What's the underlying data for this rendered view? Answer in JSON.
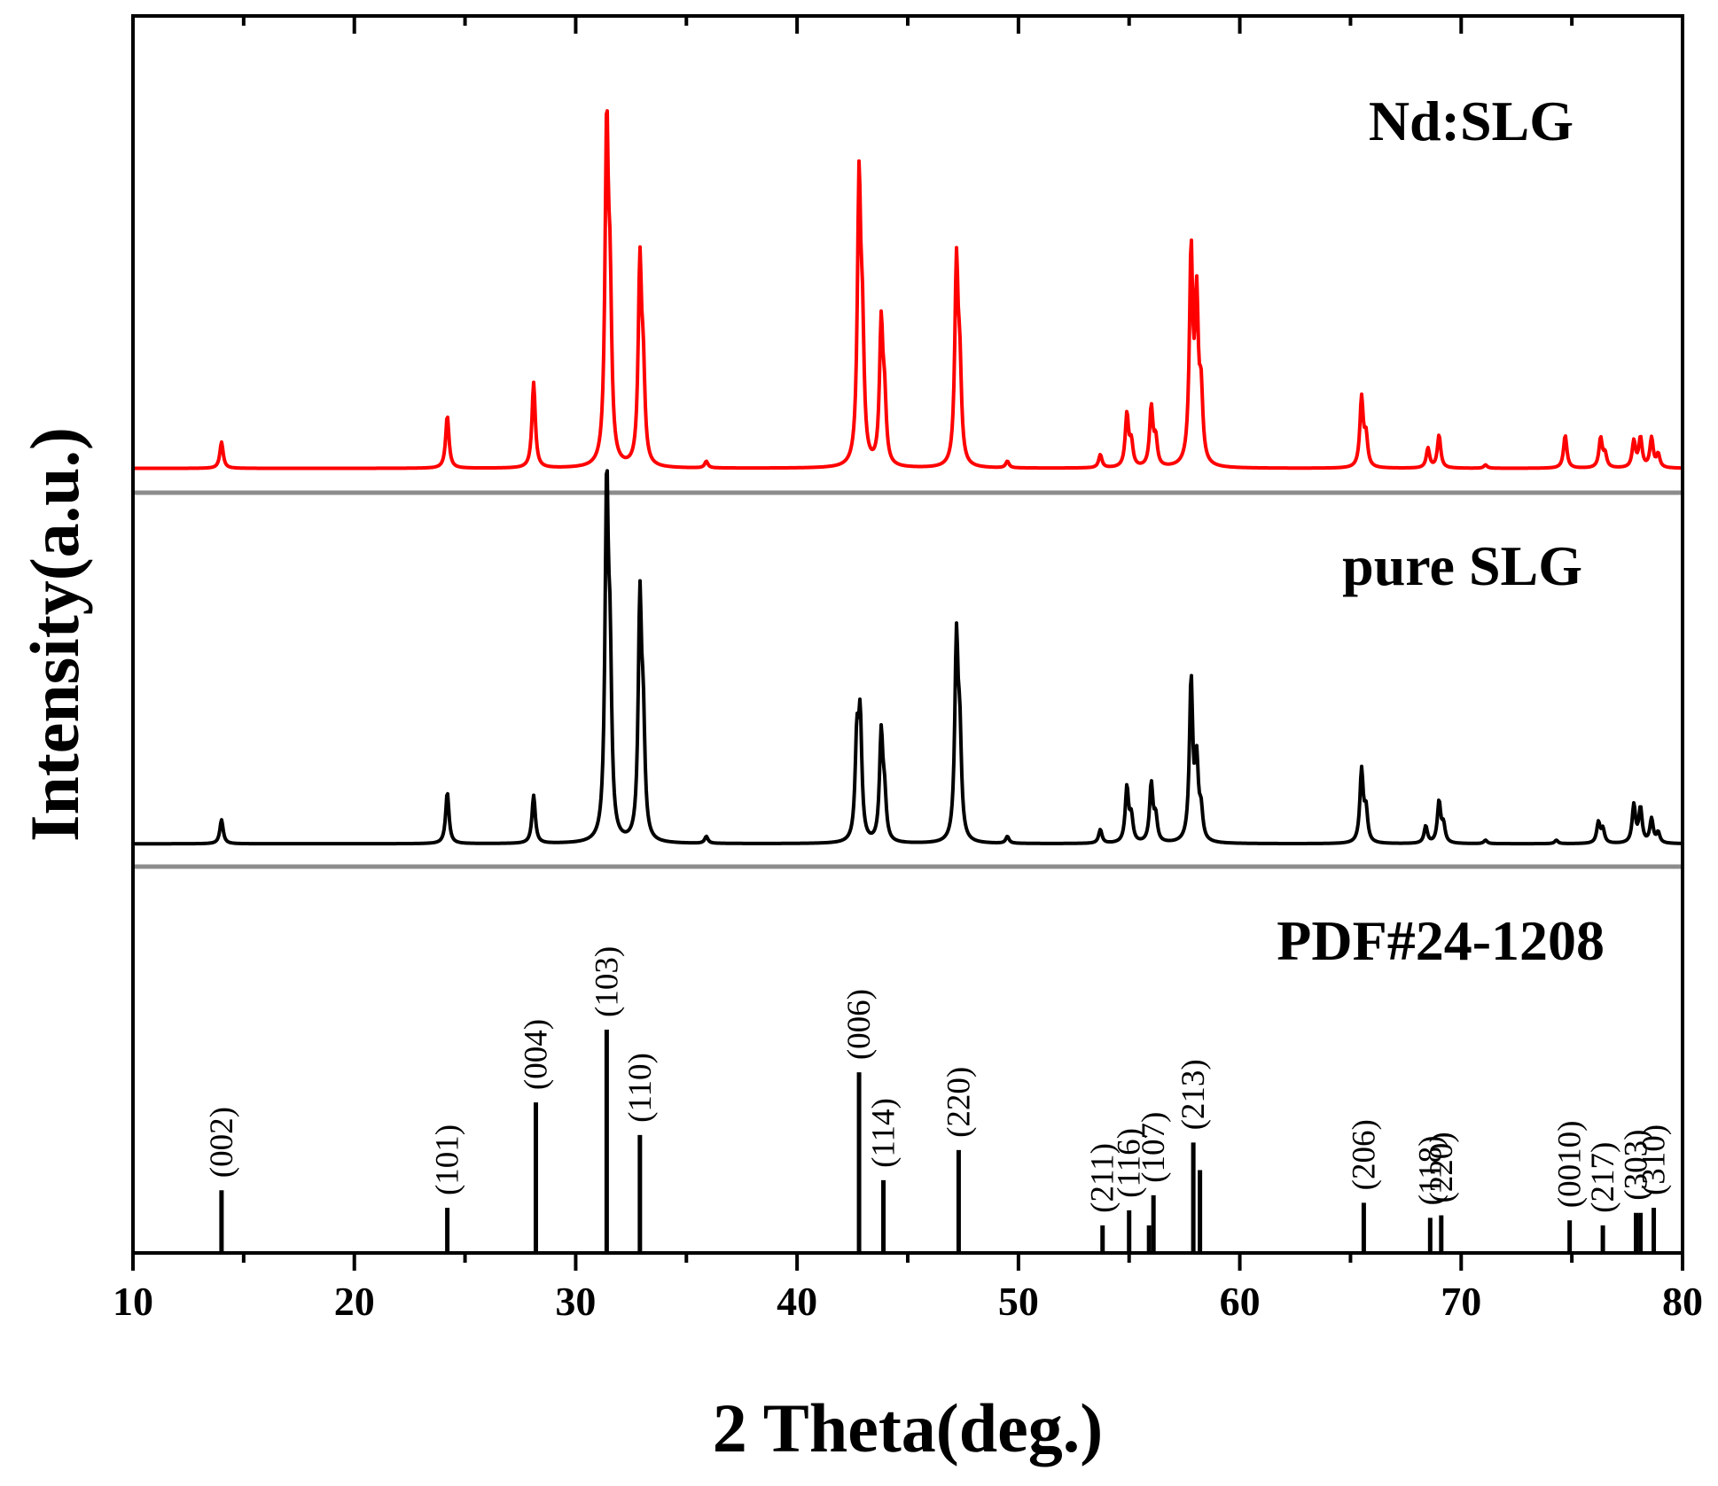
{
  "chart_data": {
    "type": "line",
    "xlabel": "2 Theta(deg.)",
    "ylabel": "Intensity(a.u.)",
    "xlim": [
      10,
      80
    ],
    "x_ticks": [
      10,
      20,
      30,
      40,
      50,
      60,
      70,
      80
    ],
    "x_tick_labels": [
      "10",
      "20",
      "30",
      "40",
      "50",
      "60",
      "70",
      "80"
    ],
    "grid": false,
    "series": [
      {
        "name": "Nd:SLG",
        "label": "Nd:SLG",
        "color": "#ff0000",
        "baseline": 0.02,
        "peaks": [
          {
            "x": 14.0,
            "h": 0.08
          },
          {
            "x": 24.2,
            "h": 0.16
          },
          {
            "x": 28.1,
            "h": 0.26
          },
          {
            "x": 31.4,
            "h": 1.0
          },
          {
            "x": 31.55,
            "h": 0.45
          },
          {
            "x": 32.9,
            "h": 0.6
          },
          {
            "x": 33.05,
            "h": 0.25
          },
          {
            "x": 35.9,
            "h": 0.02
          },
          {
            "x": 42.8,
            "h": 0.84
          },
          {
            "x": 42.95,
            "h": 0.35
          },
          {
            "x": 43.8,
            "h": 0.42
          },
          {
            "x": 43.95,
            "h": 0.18
          },
          {
            "x": 47.2,
            "h": 0.6
          },
          {
            "x": 47.35,
            "h": 0.26
          },
          {
            "x": 49.5,
            "h": 0.02
          },
          {
            "x": 53.7,
            "h": 0.04
          },
          {
            "x": 54.9,
            "h": 0.16
          },
          {
            "x": 55.1,
            "h": 0.07
          },
          {
            "x": 56.0,
            "h": 0.18
          },
          {
            "x": 56.2,
            "h": 0.08
          },
          {
            "x": 57.8,
            "h": 0.64
          },
          {
            "x": 58.05,
            "h": 0.48
          },
          {
            "x": 58.25,
            "h": 0.2
          },
          {
            "x": 65.5,
            "h": 0.21
          },
          {
            "x": 65.7,
            "h": 0.09
          },
          {
            "x": 68.5,
            "h": 0.06
          },
          {
            "x": 69.0,
            "h": 0.1
          },
          {
            "x": 71.1,
            "h": 0.01
          },
          {
            "x": 74.7,
            "h": 0.1
          },
          {
            "x": 76.3,
            "h": 0.09
          },
          {
            "x": 76.5,
            "h": 0.04
          },
          {
            "x": 77.8,
            "h": 0.08
          },
          {
            "x": 78.1,
            "h": 0.09
          },
          {
            "x": 78.6,
            "h": 0.09
          },
          {
            "x": 78.9,
            "h": 0.04
          }
        ]
      },
      {
        "name": "pure SLG",
        "label": "pure SLG",
        "color": "#000000",
        "baseline": 0.02,
        "peaks": [
          {
            "x": 14.0,
            "h": 0.07
          },
          {
            "x": 24.2,
            "h": 0.15
          },
          {
            "x": 28.1,
            "h": 0.14
          },
          {
            "x": 31.4,
            "h": 1.0
          },
          {
            "x": 31.55,
            "h": 0.45
          },
          {
            "x": 32.9,
            "h": 0.68
          },
          {
            "x": 33.05,
            "h": 0.3
          },
          {
            "x": 35.9,
            "h": 0.02
          },
          {
            "x": 42.7,
            "h": 0.28
          },
          {
            "x": 42.85,
            "h": 0.34
          },
          {
            "x": 43.8,
            "h": 0.31
          },
          {
            "x": 43.95,
            "h": 0.12
          },
          {
            "x": 47.2,
            "h": 0.57
          },
          {
            "x": 47.35,
            "h": 0.27
          },
          {
            "x": 49.5,
            "h": 0.02
          },
          {
            "x": 53.7,
            "h": 0.04
          },
          {
            "x": 54.9,
            "h": 0.16
          },
          {
            "x": 55.1,
            "h": 0.07
          },
          {
            "x": 56.0,
            "h": 0.17
          },
          {
            "x": 56.2,
            "h": 0.07
          },
          {
            "x": 57.8,
            "h": 0.47
          },
          {
            "x": 58.05,
            "h": 0.22
          },
          {
            "x": 58.25,
            "h": 0.08
          },
          {
            "x": 65.5,
            "h": 0.21
          },
          {
            "x": 65.7,
            "h": 0.09
          },
          {
            "x": 68.4,
            "h": 0.05
          },
          {
            "x": 69.0,
            "h": 0.12
          },
          {
            "x": 69.2,
            "h": 0.05
          },
          {
            "x": 71.1,
            "h": 0.01
          },
          {
            "x": 74.3,
            "h": 0.01
          },
          {
            "x": 76.2,
            "h": 0.06
          },
          {
            "x": 76.4,
            "h": 0.04
          },
          {
            "x": 77.8,
            "h": 0.11
          },
          {
            "x": 78.1,
            "h": 0.1
          },
          {
            "x": 78.6,
            "h": 0.07
          },
          {
            "x": 78.9,
            "h": 0.03
          }
        ]
      }
    ],
    "reference": {
      "name": "PDF#24-1208",
      "label": "PDF#24-1208",
      "color": "#000000",
      "lines": [
        {
          "x": 14.0,
          "h": 0.25,
          "hkl": "(002)"
        },
        {
          "x": 24.2,
          "h": 0.18,
          "hkl": "(101)"
        },
        {
          "x": 28.2,
          "h": 0.6,
          "hkl": "(004)"
        },
        {
          "x": 31.4,
          "h": 0.89,
          "hkl": "(103)"
        },
        {
          "x": 32.9,
          "h": 0.47,
          "hkl": "(110)"
        },
        {
          "x": 42.8,
          "h": 0.72,
          "hkl": "(006)"
        },
        {
          "x": 43.9,
          "h": 0.29,
          "hkl": "(114)"
        },
        {
          "x": 47.3,
          "h": 0.41,
          "hkl": "(220)"
        },
        {
          "x": 53.8,
          "h": 0.11,
          "hkl": "(211)"
        },
        {
          "x": 55.0,
          "h": 0.17,
          "hkl": "(116)"
        },
        {
          "x": 55.9,
          "h": 0.11,
          "hkl": ""
        },
        {
          "x": 56.1,
          "h": 0.23,
          "hkl": "(107)"
        },
        {
          "x": 57.9,
          "h": 0.44,
          "hkl": "(213)"
        },
        {
          "x": 58.2,
          "h": 0.33,
          "hkl": ""
        },
        {
          "x": 65.6,
          "h": 0.2,
          "hkl": "(206)"
        },
        {
          "x": 68.6,
          "h": 0.14,
          "hkl": "(118)"
        },
        {
          "x": 69.1,
          "h": 0.15,
          "hkl": "(220)"
        },
        {
          "x": 74.9,
          "h": 0.13,
          "hkl": "(0010)"
        },
        {
          "x": 76.4,
          "h": 0.11,
          "hkl": "(217)"
        },
        {
          "x": 77.9,
          "h": 0.16,
          "hkl": "(303)"
        },
        {
          "x": 78.1,
          "h": 0.16,
          "hkl": ""
        },
        {
          "x": 78.7,
          "h": 0.18,
          "hkl": "(310)"
        }
      ]
    }
  }
}
